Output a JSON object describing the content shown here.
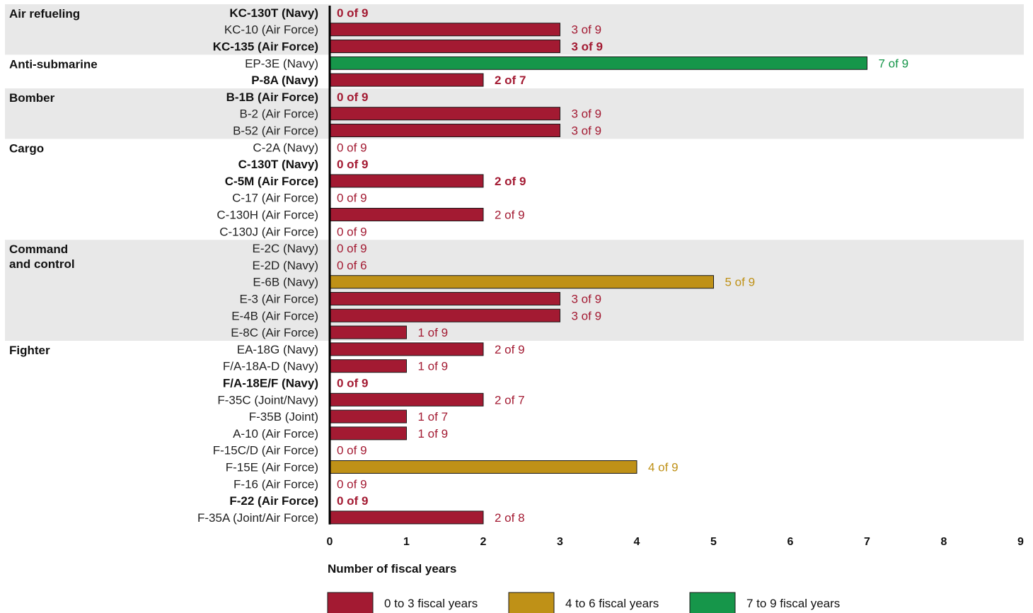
{
  "chart_data": {
    "type": "bar",
    "orientation": "horizontal",
    "xlabel": "Number of fiscal years",
    "xlim": [
      0,
      9
    ],
    "xticks": [
      "0",
      "1",
      "2",
      "3",
      "4",
      "5",
      "6",
      "7",
      "8",
      "9"
    ],
    "grid": false,
    "legend_position": "bottom",
    "colors": {
      "low": "#a31a32",
      "mid": "#bf9117",
      "high": "#16964a",
      "band": "#e8e8e8",
      "axis": "#000000"
    },
    "legend": [
      {
        "key": "low",
        "label": "0 to 3 fiscal years"
      },
      {
        "key": "mid",
        "label": "4 to 6 fiscal years"
      },
      {
        "key": "high",
        "label": "7 to 9 fiscal years"
      }
    ],
    "groups": [
      {
        "category": "Air refueling",
        "shaded": true,
        "rows": [
          {
            "label": "KC-130T (Navy)",
            "value": 0,
            "text": "0 of 9",
            "bold": true,
            "color": "low"
          },
          {
            "label": "KC-10 (Air Force)",
            "value": 3,
            "text": "3 of 9",
            "bold": false,
            "color": "low"
          },
          {
            "label": "KC-135 (Air Force)",
            "value": 3,
            "text": "3 of 9",
            "bold": true,
            "color": "low"
          }
        ]
      },
      {
        "category": "Anti-submarine",
        "shaded": false,
        "rows": [
          {
            "label": "EP-3E (Navy)",
            "value": 7,
            "text": "7 of 9",
            "bold": false,
            "color": "high"
          },
          {
            "label": "P-8A (Navy)",
            "value": 2,
            "text": "2 of 7",
            "bold": true,
            "color": "low"
          }
        ]
      },
      {
        "category": "Bomber",
        "shaded": true,
        "rows": [
          {
            "label": "B-1B (Air Force)",
            "value": 0,
            "text": "0 of 9",
            "bold": true,
            "color": "low"
          },
          {
            "label": "B-2 (Air Force)",
            "value": 3,
            "text": "3 of 9",
            "bold": false,
            "color": "low"
          },
          {
            "label": "B-52 (Air Force)",
            "value": 3,
            "text": "3 of 9",
            "bold": false,
            "color": "low"
          }
        ]
      },
      {
        "category": "Cargo",
        "shaded": false,
        "rows": [
          {
            "label": "C-2A (Navy)",
            "value": 0,
            "text": "0 of 9",
            "bold": false,
            "color": "low"
          },
          {
            "label": "C-130T (Navy)",
            "value": 0,
            "text": "0 of 9",
            "bold": true,
            "color": "low"
          },
          {
            "label": "C-5M (Air Force)",
            "value": 2,
            "text": "2 of 9",
            "bold": true,
            "color": "low"
          },
          {
            "label": "C-17 (Air Force)",
            "value": 0,
            "text": "0 of 9",
            "bold": false,
            "color": "low"
          },
          {
            "label": "C-130H (Air Force)",
            "value": 2,
            "text": "2 of 9",
            "bold": false,
            "color": "low"
          },
          {
            "label": "C-130J (Air Force)",
            "value": 0,
            "text": "0 of 9",
            "bold": false,
            "color": "low"
          }
        ]
      },
      {
        "category": "Command and control",
        "category_lines": [
          "Command",
          "and control"
        ],
        "shaded": true,
        "rows": [
          {
            "label": "E-2C (Navy)",
            "value": 0,
            "text": "0 of 9",
            "bold": false,
            "color": "low"
          },
          {
            "label": "E-2D (Navy)",
            "value": 0,
            "text": "0 of 6",
            "bold": false,
            "color": "low"
          },
          {
            "label": "E-6B (Navy)",
            "value": 5,
            "text": "5 of 9",
            "bold": false,
            "color": "mid"
          },
          {
            "label": "E-3 (Air Force)",
            "value": 3,
            "text": "3 of 9",
            "bold": false,
            "color": "low"
          },
          {
            "label": "E-4B (Air Force)",
            "value": 3,
            "text": "3 of 9",
            "bold": false,
            "color": "low"
          },
          {
            "label": "E-8C (Air Force)",
            "value": 1,
            "text": "1 of 9",
            "bold": false,
            "color": "low"
          }
        ]
      },
      {
        "category": "Fighter",
        "shaded": false,
        "rows": [
          {
            "label": "EA-18G (Navy)",
            "value": 2,
            "text": "2 of 9",
            "bold": false,
            "color": "low"
          },
          {
            "label": "F/A-18A-D (Navy)",
            "value": 1,
            "text": "1 of 9",
            "bold": false,
            "color": "low"
          },
          {
            "label": "F/A-18E/F (Navy)",
            "value": 0,
            "text": "0 of 9",
            "bold": true,
            "color": "low"
          },
          {
            "label": "F-35C (Joint/Navy)",
            "value": 2,
            "text": "2 of 7",
            "bold": false,
            "color": "low"
          },
          {
            "label": "F-35B (Joint)",
            "value": 1,
            "text": "1 of 7",
            "bold": false,
            "color": "low"
          },
          {
            "label": "A-10 (Air Force)",
            "value": 1,
            "text": "1 of 9",
            "bold": false,
            "color": "low"
          },
          {
            "label": "F-15C/D (Air Force)",
            "value": 0,
            "text": "0 of 9",
            "bold": false,
            "color": "low"
          },
          {
            "label": "F-15E (Air Force)",
            "value": 4,
            "text": "4 of 9",
            "bold": false,
            "color": "mid"
          },
          {
            "label": "F-16 (Air Force)",
            "value": 0,
            "text": "0 of 9",
            "bold": false,
            "color": "low"
          },
          {
            "label": "F-22 (Air Force)",
            "value": 0,
            "text": "0 of 9",
            "bold": true,
            "color": "low"
          },
          {
            "label": "F-35A (Joint/Air Force)",
            "value": 2,
            "text": "2 of 8",
            "bold": false,
            "color": "low"
          }
        ]
      }
    ]
  }
}
